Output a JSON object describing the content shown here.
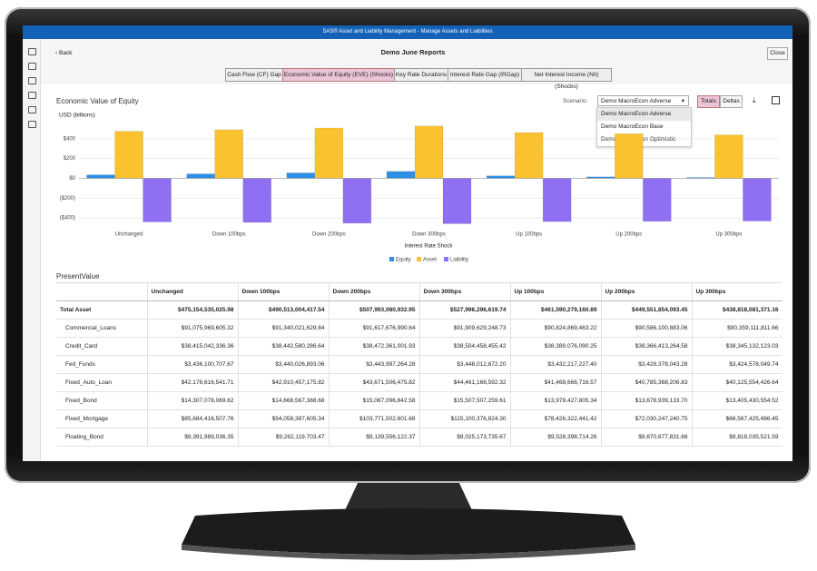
{
  "app": {
    "title": "SAS® Asset and Liability Management - Manage Assets and Liabilities",
    "back": "Back",
    "page_title": "Demo June Reports",
    "close": "Close",
    "tabs": [
      "Cash Flow (CF) Gap",
      "Economic Value of Equity (EVE) (Shocks)",
      "Key Rate Durations",
      "Interest Rate Gap (IRGap)",
      "Net Interest Income (NII) (Shocks)"
    ],
    "section_title": "Economic Value of Equity",
    "scenario_label": "Scenario:",
    "scenario_selected": "Demo MacroEcon Adverse",
    "scenario_options": [
      "Demo MacroEcon Adverse",
      "Demo MacroEcon Base",
      "Demo MacroEcon Optimistic"
    ],
    "view_buttons": [
      "Totals",
      "Deltas"
    ],
    "table_title": "PresentValue"
  },
  "chart_data": {
    "type": "bar",
    "y_label": "USD (billions)",
    "x_label": "Interest Rate Shock",
    "categories": [
      "Unchanged",
      "Down 100bps",
      "Down 200bps",
      "Down 300bps",
      "Up 100bps",
      "Up 200bps",
      "Up 300bps"
    ],
    "series": [
      {
        "name": "Equity",
        "color": "#2e8fe6",
        "values": [
          35,
          45,
          55,
          70,
          25,
          15,
          8
        ]
      },
      {
        "name": "Asset",
        "color": "#f9c22e",
        "values": [
          475,
          491,
          508,
          528,
          462,
          450,
          439
        ]
      },
      {
        "name": "Liability",
        "color": "#8f6ff2",
        "values": [
          -440,
          -445,
          -453,
          -458,
          -437,
          -434,
          -431
        ]
      }
    ],
    "ylim": [
      -500,
      600
    ],
    "yticks": [
      {
        "value": -400,
        "label": "($400)"
      },
      {
        "value": -200,
        "label": "($200)"
      },
      {
        "value": 0,
        "label": "$0"
      },
      {
        "value": 200,
        "label": "$200"
      },
      {
        "value": 400,
        "label": "$400"
      }
    ],
    "grid": true
  },
  "table": {
    "columns": [
      "Unchanged",
      "Down 100bps",
      "Down 200bps",
      "Down 300bps",
      "Up 100bps",
      "Up 200bps",
      "Up 300bps"
    ],
    "rows": [
      [
        "Total Asset",
        "$475,154,535,025.98",
        "$490,513,004,417.54",
        "$507,993,080,932.95",
        "$527,996,296,619.74",
        "$461,590,279,160.89",
        "$449,551,854,093.45",
        "$438,818,081,371.16"
      ],
      [
        "Commercial_Loans",
        "$91,075,969,605.32",
        "$91,340,021,629.84",
        "$91,617,676,990.64",
        "$91,909,629,248.73",
        "$90,824,869,463.22",
        "$90,586,100,883.06",
        "$90,359,111,811.66"
      ],
      [
        "Credit_Card",
        "$38,415,042,336.36",
        "$38,442,580,286.64",
        "$38,472,361,001.93",
        "$38,504,458,455.42",
        "$38,389,076,090.25",
        "$38,366,413,264.58",
        "$38,345,132,123.03"
      ],
      [
        "Fed_Funds",
        "$3,436,100,707.67",
        "$3,440,026,893.06",
        "$3,443,997,264.28",
        "$3,448,012,872.20",
        "$3,432,217,227.40",
        "$3,428,378,043.28",
        "$3,424,578,049.74"
      ],
      [
        "Fixed_Auto_Loan",
        "$42,176,616,541.71",
        "$42,910,457,175.82",
        "$43,671,506,475.82",
        "$44,461,166,592.32",
        "$41,468,666,716.57",
        "$40,785,368,206.83",
        "$40,125,554,426.64"
      ],
      [
        "Fixed_Bond",
        "$14,307,078,069.62",
        "$14,668,567,388.68",
        "$15,067,096,842.58",
        "$15,507,507,259.61",
        "$13,978,427,805.34",
        "$13,678,939,133.70",
        "$13,405,430,554.52"
      ],
      [
        "Fixed_Mortgage",
        "$85,684,416,507.76",
        "$94,058,387,605.34",
        "$103,771,502,601.68",
        "$115,100,376,824.30",
        "$78,426,322,441.42",
        "$72,030,247,240.75",
        "$66,567,425,486.45"
      ],
      [
        "Floating_Bond",
        "$9,391,989,036.35",
        "$9,262,119,703.47",
        "$9,139,556,122.37",
        "$9,025,173,735.67",
        "$9,528,398,714.26",
        "$9,670,677,831.68",
        "$9,818,035,521.59"
      ]
    ]
  }
}
